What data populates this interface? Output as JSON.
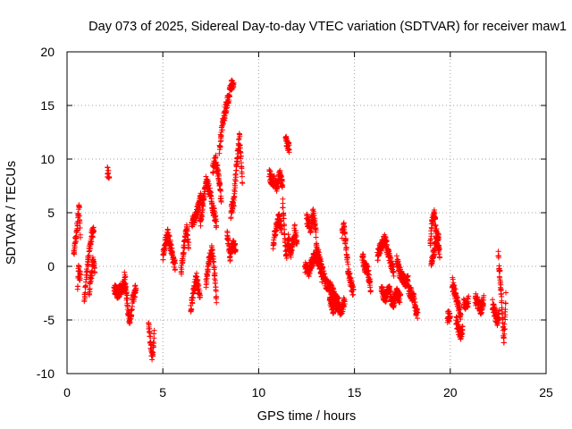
{
  "chart_data": {
    "type": "scatter",
    "title": "Day 073 of 2025, Sidereal Day-to-day VTEC variation (SDTVAR) for receiver maw1",
    "xlabel": "GPS time / hours",
    "ylabel": "SDTVAR / TECUs",
    "xlim": [
      0,
      25
    ],
    "ylim": [
      -10,
      20
    ],
    "xticks": [
      0,
      5,
      10,
      15,
      20,
      25
    ],
    "yticks": [
      -10,
      -5,
      0,
      5,
      10,
      15,
      20
    ],
    "xtick_labels": [
      "0",
      "5",
      "10",
      "15",
      "20",
      "25"
    ],
    "ytick_labels": [
      "-10",
      "-5",
      "0",
      "5",
      "10",
      "15",
      "20"
    ],
    "grid": true,
    "marker": "+",
    "marker_color": "#ff0000",
    "series": [
      {
        "name": "maw1",
        "segments": [
          [
            0.35,
            0.7,
            [
              [
                0.35,
                1.2
              ],
              [
                0.45,
                2.5
              ],
              [
                0.55,
                4.0
              ],
              [
                0.62,
                6.0
              ],
              [
                0.7,
                3.0
              ]
            ]
          ],
          [
            0.55,
            0.7,
            [
              [
                0.55,
                -2.2
              ],
              [
                0.6,
                0.0
              ],
              [
                0.65,
                -1.0
              ],
              [
                0.7,
                -0.5
              ]
            ]
          ],
          [
            0.9,
            1.4,
            [
              [
                0.9,
                -3.2
              ],
              [
                1.0,
                -1.0
              ],
              [
                1.1,
                0.5
              ],
              [
                1.2,
                2.0
              ],
              [
                1.3,
                3.0
              ],
              [
                1.4,
                3.5
              ]
            ]
          ],
          [
            1.15,
            1.45,
            [
              [
                1.15,
                -2.5
              ],
              [
                1.25,
                -1.0
              ],
              [
                1.35,
                0.5
              ],
              [
                1.45,
                -0.5
              ]
            ]
          ],
          [
            2.1,
            2.2,
            [
              [
                2.1,
                8.8
              ],
              [
                2.2,
                8.5
              ]
            ]
          ],
          [
            2.45,
            3.05,
            [
              [
                2.45,
                -2.0
              ],
              [
                2.65,
                -2.5
              ],
              [
                2.85,
                -2.0
              ],
              [
                3.05,
                -1.5
              ]
            ]
          ],
          [
            3.0,
            3.6,
            [
              [
                3.0,
                -1.0
              ],
              [
                3.1,
                -2.5
              ],
              [
                3.2,
                -4.5
              ],
              [
                3.3,
                -5.2
              ],
              [
                3.45,
                -3.0
              ],
              [
                3.6,
                -2.0
              ]
            ]
          ],
          [
            4.25,
            4.55,
            [
              [
                4.25,
                -5.5
              ],
              [
                4.35,
                -7.0
              ],
              [
                4.45,
                -8.5
              ],
              [
                4.55,
                -6.5
              ]
            ]
          ],
          [
            5.0,
            5.65,
            [
              [
                5.0,
                1.0
              ],
              [
                5.1,
                2.0
              ],
              [
                5.25,
                3.0
              ],
              [
                5.4,
                2.0
              ],
              [
                5.55,
                0.5
              ],
              [
                5.65,
                0.0
              ]
            ]
          ],
          [
            5.95,
            6.35,
            [
              [
                5.95,
                -0.5
              ],
              [
                6.05,
                1.0
              ],
              [
                6.15,
                2.5
              ],
              [
                6.25,
                3.5
              ],
              [
                6.35,
                2.0
              ]
            ]
          ],
          [
            6.45,
            6.95,
            [
              [
                6.45,
                -4.0
              ],
              [
                6.6,
                -2.5
              ],
              [
                6.75,
                -1.0
              ],
              [
                6.95,
                -3.0
              ]
            ]
          ],
          [
            6.5,
            7.0,
            [
              [
                6.5,
                4.0
              ],
              [
                6.7,
                4.5
              ],
              [
                6.85,
                5.5
              ],
              [
                7.0,
                6.5
              ]
            ]
          ],
          [
            6.95,
            7.8,
            [
              [
                6.95,
                4.0
              ],
              [
                7.1,
                6.0
              ],
              [
                7.25,
                8.0
              ],
              [
                7.45,
                7.0
              ],
              [
                7.6,
                5.5
              ],
              [
                7.8,
                4.0
              ]
            ]
          ],
          [
            7.25,
            7.8,
            [
              [
                7.25,
                -1.5
              ],
              [
                7.4,
                0.5
              ],
              [
                7.55,
                1.5
              ],
              [
                7.65,
                0.5
              ],
              [
                7.8,
                -3.0
              ]
            ]
          ],
          [
            7.6,
            8.05,
            [
              [
                7.6,
                9.0
              ],
              [
                7.75,
                10.0
              ],
              [
                7.9,
                8.5
              ],
              [
                8.05,
                6.0
              ]
            ]
          ],
          [
            7.95,
            8.7,
            [
              [
                7.95,
                11.0
              ],
              [
                8.1,
                13.0
              ],
              [
                8.25,
                14.5
              ],
              [
                8.45,
                16.0
              ],
              [
                8.6,
                17.0
              ],
              [
                8.7,
                17.2
              ]
            ]
          ],
          [
            8.35,
            8.8,
            [
              [
                8.35,
                3.0
              ],
              [
                8.5,
                1.0
              ],
              [
                8.65,
                2.0
              ],
              [
                8.8,
                1.5
              ]
            ]
          ],
          [
            8.55,
            9.15,
            [
              [
                8.55,
                5.0
              ],
              [
                8.7,
                6.0
              ],
              [
                8.85,
                9.5
              ],
              [
                9.0,
                12.0
              ],
              [
                9.15,
                8.0
              ]
            ]
          ],
          [
            10.55,
            11.25,
            [
              [
                10.55,
                8.5
              ],
              [
                10.75,
                8.0
              ],
              [
                10.95,
                7.5
              ],
              [
                11.1,
                8.5
              ],
              [
                11.25,
                7.5
              ]
            ]
          ],
          [
            10.75,
            11.2,
            [
              [
                10.75,
                2.0
              ],
              [
                10.9,
                3.5
              ],
              [
                11.05,
                4.5
              ],
              [
                11.2,
                3.5
              ]
            ]
          ],
          [
            11.25,
            11.7,
            [
              [
                11.25,
                6.0
              ],
              [
                11.35,
                3.0
              ],
              [
                11.45,
                1.0
              ],
              [
                11.55,
                2.5
              ],
              [
                11.7,
                1.5
              ]
            ]
          ],
          [
            11.4,
            11.6,
            [
              [
                11.4,
                12.0
              ],
              [
                11.5,
                11.5
              ],
              [
                11.6,
                11.0
              ]
            ]
          ],
          [
            11.65,
            12.0,
            [
              [
                11.65,
                1.0
              ],
              [
                11.8,
                2.5
              ],
              [
                11.9,
                3.5
              ],
              [
                12.0,
                2.0
              ]
            ]
          ],
          [
            12.4,
            13.3,
            [
              [
                12.4,
                0.0
              ],
              [
                12.6,
                -0.5
              ],
              [
                12.8,
                0.5
              ],
              [
                13.0,
                1.0
              ],
              [
                13.2,
                0.0
              ],
              [
                13.3,
                -1.0
              ]
            ]
          ],
          [
            12.5,
            13.0,
            [
              [
                12.5,
                4.5
              ],
              [
                12.7,
                3.5
              ],
              [
                12.85,
                5.0
              ],
              [
                13.0,
                3.0
              ]
            ]
          ],
          [
            13.0,
            14.2,
            [
              [
                13.0,
                2.0
              ],
              [
                13.25,
                0.0
              ],
              [
                13.5,
                -1.5
              ],
              [
                13.75,
                -2.0
              ],
              [
                14.0,
                -3.0
              ],
              [
                14.2,
                -3.5
              ]
            ]
          ],
          [
            13.7,
            14.5,
            [
              [
                13.7,
                -3.0
              ],
              [
                13.9,
                -4.0
              ],
              [
                14.1,
                -3.5
              ],
              [
                14.3,
                -4.2
              ],
              [
                14.5,
                -3.0
              ]
            ]
          ],
          [
            14.35,
            14.95,
            [
              [
                14.35,
                3.0
              ],
              [
                14.45,
                4.0
              ],
              [
                14.55,
                2.0
              ],
              [
                14.65,
                0.0
              ],
              [
                14.8,
                -1.5
              ],
              [
                14.95,
                -2.5
              ]
            ]
          ],
          [
            15.4,
            15.85,
            [
              [
                15.4,
                1.0
              ],
              [
                15.55,
                0.0
              ],
              [
                15.7,
                -0.5
              ],
              [
                15.85,
                -2.0
              ]
            ]
          ],
          [
            16.2,
            17.05,
            [
              [
                16.2,
                1.0
              ],
              [
                16.4,
                2.0
              ],
              [
                16.6,
                2.5
              ],
              [
                16.8,
                1.0
              ],
              [
                16.95,
                0.0
              ],
              [
                17.05,
                -0.5
              ]
            ]
          ],
          [
            16.4,
            17.4,
            [
              [
                16.4,
                -2.0
              ],
              [
                16.6,
                -3.0
              ],
              [
                16.8,
                -2.0
              ],
              [
                17.0,
                -3.5
              ],
              [
                17.2,
                -2.5
              ],
              [
                17.4,
                -3.0
              ]
            ]
          ],
          [
            17.2,
            17.8,
            [
              [
                17.2,
                0.5
              ],
              [
                17.35,
                -0.5
              ],
              [
                17.5,
                -1.0
              ],
              [
                17.65,
                -1.5
              ],
              [
                17.8,
                -1.0
              ]
            ]
          ],
          [
            17.8,
            18.3,
            [
              [
                17.8,
                -2.0
              ],
              [
                17.95,
                -2.5
              ],
              [
                18.1,
                -3.0
              ],
              [
                18.2,
                -4.0
              ],
              [
                18.3,
                -4.5
              ]
            ]
          ],
          [
            18.95,
            19.45,
            [
              [
                18.95,
                2.0
              ],
              [
                19.05,
                4.0
              ],
              [
                19.15,
                5.0
              ],
              [
                19.25,
                3.5
              ],
              [
                19.35,
                2.0
              ],
              [
                19.45,
                1.0
              ]
            ]
          ],
          [
            19.0,
            19.4,
            [
              [
                19.0,
                0.0
              ],
              [
                19.15,
                1.5
              ],
              [
                19.3,
                2.5
              ],
              [
                19.4,
                3.0
              ]
            ]
          ],
          [
            19.85,
            20.0,
            [
              [
                19.85,
                -4.8
              ],
              [
                20.0,
                -4.5
              ]
            ]
          ],
          [
            20.1,
            20.55,
            [
              [
                20.1,
                -1.5
              ],
              [
                20.25,
                -2.5
              ],
              [
                20.4,
                -3.5
              ],
              [
                20.55,
                -4.5
              ]
            ]
          ],
          [
            20.3,
            20.65,
            [
              [
                20.3,
                -5.0
              ],
              [
                20.45,
                -6.0
              ],
              [
                20.55,
                -6.5
              ],
              [
                20.65,
                -6.0
              ]
            ]
          ],
          [
            20.7,
            20.95,
            [
              [
                20.7,
                -3.5
              ],
              [
                20.8,
                -3.8
              ],
              [
                20.95,
                -3.2
              ]
            ]
          ],
          [
            21.3,
            21.75,
            [
              [
                21.3,
                -3.0
              ],
              [
                21.45,
                -3.5
              ],
              [
                21.6,
                -4.0
              ],
              [
                21.75,
                -3.0
              ]
            ]
          ],
          [
            22.2,
            22.55,
            [
              [
                22.2,
                -3.5
              ],
              [
                22.35,
                -4.5
              ],
              [
                22.45,
                -5.0
              ],
              [
                22.55,
                -4.5
              ]
            ]
          ],
          [
            22.5,
            22.9,
            [
              [
                22.5,
                1.0
              ],
              [
                22.6,
                -1.0
              ],
              [
                22.7,
                -4.0
              ],
              [
                22.8,
                -7.0
              ],
              [
                22.9,
                -3.0
              ]
            ]
          ]
        ]
      }
    ]
  }
}
